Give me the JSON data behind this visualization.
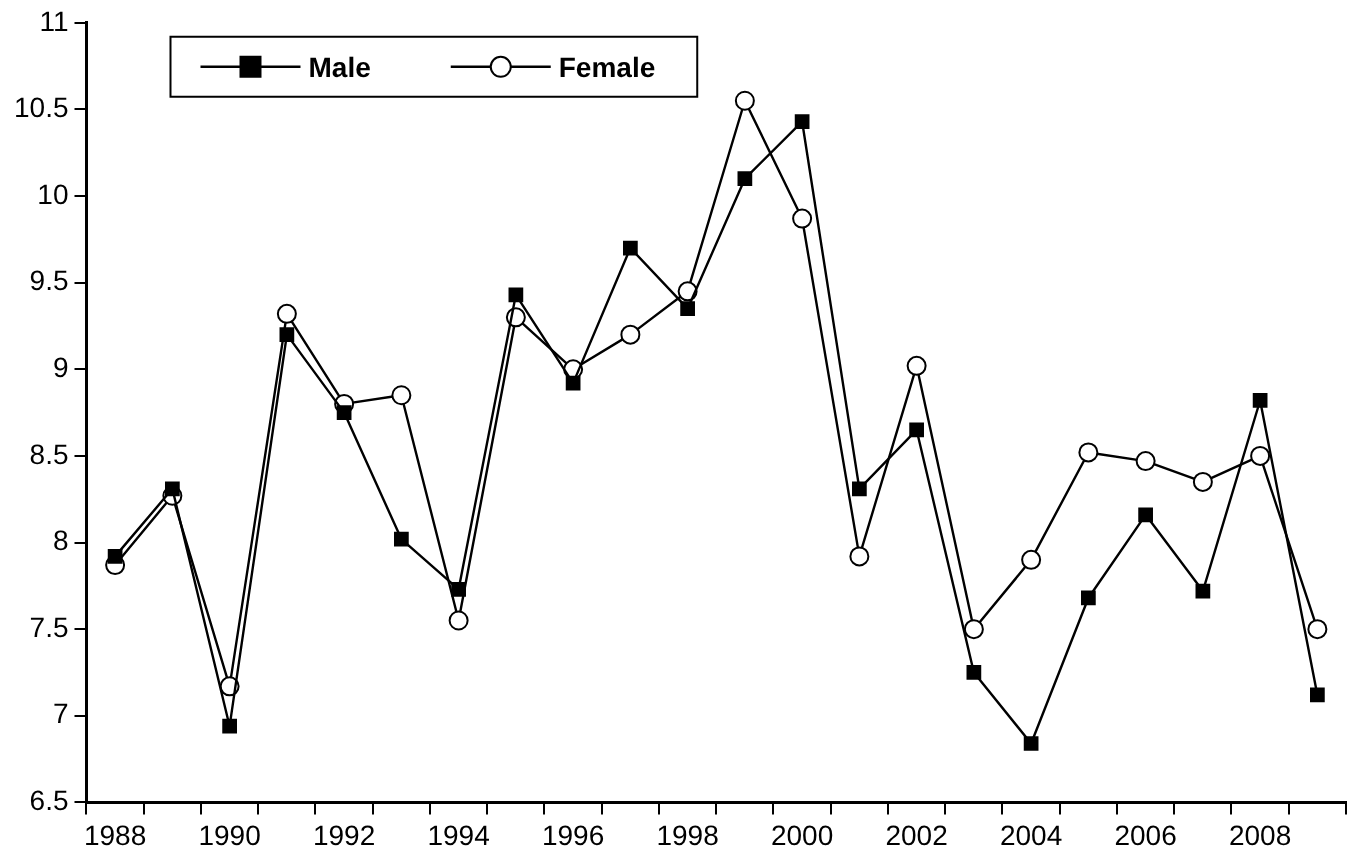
{
  "chart_data": {
    "type": "line",
    "categories": [
      "1988",
      null,
      "1990",
      null,
      "1992",
      null,
      "1994",
      null,
      "1996",
      null,
      "1998",
      null,
      "2000",
      null,
      "2002",
      null,
      "2004",
      null,
      "2006",
      null,
      "2008",
      null
    ],
    "series": [
      {
        "name": "Male",
        "color": "#000000",
        "marker": "square",
        "values": [
          7.92,
          8.31,
          6.94,
          9.2,
          8.75,
          8.02,
          7.73,
          9.43,
          8.92,
          9.7,
          9.35,
          10.1,
          10.43,
          8.31,
          8.65,
          7.25,
          6.84,
          7.68,
          8.16,
          7.72,
          8.82,
          7.12
        ]
      },
      {
        "name": "Female",
        "color": "#000000",
        "marker": "circle",
        "values": [
          7.87,
          8.27,
          7.17,
          9.32,
          8.8,
          8.85,
          7.55,
          9.3,
          9.0,
          9.2,
          9.45,
          10.55,
          9.87,
          7.92,
          9.02,
          7.5,
          7.9,
          8.52,
          8.47,
          8.35,
          8.5,
          7.5
        ]
      }
    ],
    "ylim": [
      6.5,
      11
    ],
    "yticks": [
      6.5,
      7,
      7.5,
      8,
      8.5,
      9,
      9.5,
      10,
      10.5,
      11
    ],
    "grid": false,
    "legend": "top left",
    "line_style": "solid"
  }
}
